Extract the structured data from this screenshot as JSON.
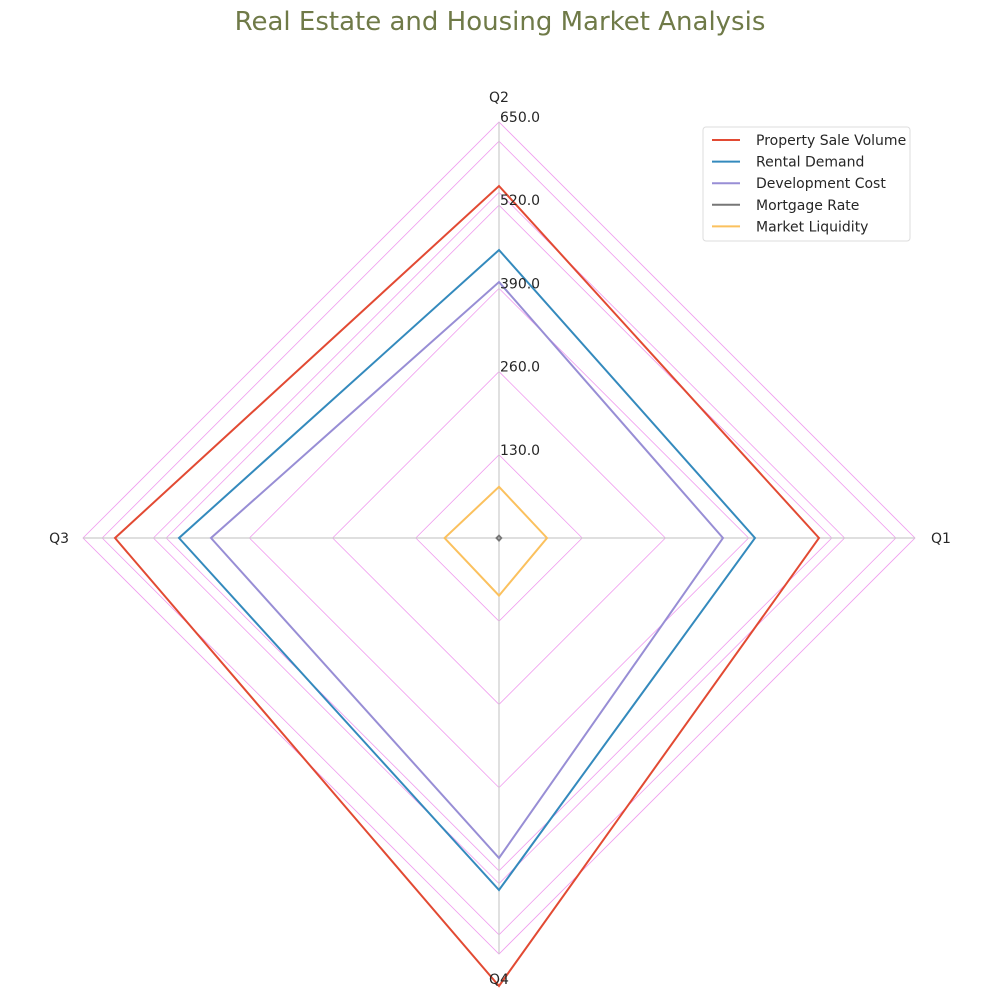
{
  "chart_data": {
    "type": "radar",
    "title": "Real Estate and Housing Market Analysis",
    "categories": [
      "Q1",
      "Q2",
      "Q3",
      "Q4"
    ],
    "radial_ticks": [
      "130.0",
      "260.0",
      "390.0",
      "520.0",
      "650.0"
    ],
    "rmax": 650,
    "grid_rings": [
      130,
      260,
      390,
      520,
      540,
      620,
      650
    ],
    "series": [
      {
        "name": "Property Sale Volume",
        "values": [
          500,
          550,
          600,
          700
        ],
        "color": "#E24A33"
      },
      {
        "name": "Rental Demand",
        "values": [
          400,
          450,
          500,
          550
        ],
        "color": "#348ABD"
      },
      {
        "name": "Development Cost",
        "values": [
          350,
          400,
          450,
          500
        ],
        "color": "#988ED5"
      },
      {
        "name": "Mortgage Rate",
        "values": [
          3.5,
          3.7,
          3.8,
          4.0
        ],
        "color": "#777777"
      },
      {
        "name": "Market Liquidity",
        "values": [
          75,
          80,
          85,
          90
        ],
        "color": "#FBC15E"
      }
    ],
    "legend": "top-right",
    "grid": true,
    "colors": {
      "title": "#6F7A48",
      "grid": "#F09BEF",
      "spoke": "#CCCCCC"
    }
  }
}
